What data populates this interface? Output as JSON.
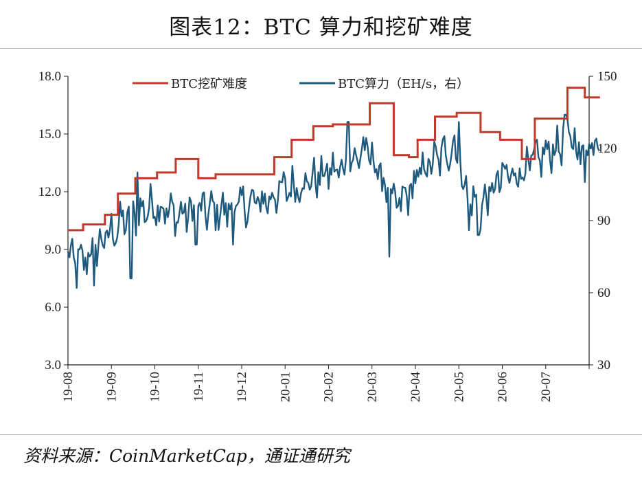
{
  "title": "图表12：BTC 算力和挖矿难度",
  "source": "资料来源：CoinMarketCap，通证通研究",
  "chart_data": {
    "type": "line",
    "x_tick_labels": [
      "19-08",
      "19-09",
      "19-10",
      "19-11",
      "19-12",
      "20-01",
      "20-02",
      "20-03",
      "20-04",
      "20-05",
      "20-06",
      "20-07"
    ],
    "x_range_months": [
      0,
      12
    ],
    "y_left": {
      "range": [
        3.0,
        18.0
      ],
      "ticks": [
        "3.0",
        "6.0",
        "9.0",
        "12.0",
        "15.0",
        "18.0"
      ]
    },
    "y_right": {
      "range": [
        30,
        150
      ],
      "ticks": [
        "30",
        "60",
        "90",
        "120",
        "150"
      ]
    },
    "legend_position": "top",
    "series": [
      {
        "name": "BTC挖矿难度",
        "axis": "left",
        "color": "#c0392b",
        "style": "step",
        "steps": [
          [
            0.0,
            10.0
          ],
          [
            0.35,
            10.3
          ],
          [
            0.85,
            10.8
          ],
          [
            1.15,
            11.9
          ],
          [
            1.55,
            12.7
          ],
          [
            2.05,
            13.0
          ],
          [
            2.48,
            13.7
          ],
          [
            3.0,
            12.7
          ],
          [
            3.4,
            12.9
          ],
          [
            3.95,
            12.9
          ],
          [
            4.75,
            13.8
          ],
          [
            5.15,
            14.7
          ],
          [
            5.65,
            15.4
          ],
          [
            6.1,
            15.5
          ],
          [
            6.6,
            15.5
          ],
          [
            6.95,
            16.6
          ],
          [
            7.5,
            13.9
          ],
          [
            7.85,
            13.8
          ],
          [
            8.05,
            14.7
          ],
          [
            8.45,
            15.9
          ],
          [
            8.95,
            16.1
          ],
          [
            9.5,
            15.1
          ],
          [
            9.95,
            14.7
          ],
          [
            10.45,
            13.7
          ],
          [
            10.75,
            15.8
          ],
          [
            11.5,
            17.4
          ],
          [
            11.9,
            16.9
          ],
          [
            12.25,
            16.9
          ]
        ]
      },
      {
        "name": "BTC算力（EH/s，右）",
        "axis": "right",
        "color": "#1e5a7e",
        "style": "line",
        "anchors": [
          [
            0.0,
            75
          ],
          [
            0.3,
            72
          ],
          [
            0.6,
            78
          ],
          [
            1.0,
            85
          ],
          [
            1.3,
            90
          ],
          [
            1.6,
            93
          ],
          [
            2.0,
            97
          ],
          [
            2.5,
            92
          ],
          [
            3.0,
            94
          ],
          [
            3.5,
            94
          ],
          [
            4.0,
            96
          ],
          [
            4.5,
            98
          ],
          [
            5.0,
            103
          ],
          [
            5.5,
            106
          ],
          [
            6.0,
            110
          ],
          [
            6.5,
            112
          ],
          [
            6.8,
            120
          ],
          [
            7.1,
            113
          ],
          [
            7.5,
            95
          ],
          [
            7.8,
            100
          ],
          [
            8.2,
            112
          ],
          [
            8.5,
            115
          ],
          [
            8.9,
            122
          ],
          [
            9.2,
            100
          ],
          [
            9.5,
            95
          ],
          [
            9.8,
            103
          ],
          [
            10.0,
            108
          ],
          [
            10.4,
            110
          ],
          [
            10.8,
            115
          ],
          [
            11.2,
            120
          ],
          [
            11.6,
            125
          ],
          [
            11.8,
            118
          ],
          [
            12.0,
            122
          ],
          [
            12.25,
            125
          ]
        ],
        "amplitude_eh_s": 7,
        "points_per_month": 30,
        "spikes": [
          [
            0.2,
            62
          ],
          [
            0.6,
            63
          ],
          [
            1.45,
            66
          ],
          [
            1.6,
            110
          ],
          [
            2.95,
            80
          ],
          [
            3.8,
            80
          ],
          [
            6.45,
            131
          ],
          [
            7.4,
            75
          ],
          [
            9.0,
            131
          ],
          [
            9.22,
            86
          ],
          [
            9.45,
            84
          ],
          [
            11.45,
            134
          ],
          [
            11.9,
            106
          ]
        ]
      }
    ]
  }
}
